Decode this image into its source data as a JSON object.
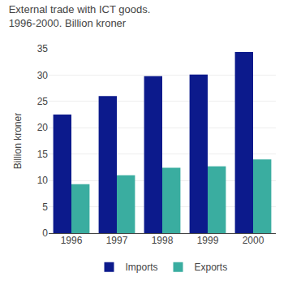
{
  "chart_data": {
    "type": "bar",
    "title": "External trade with ICT goods. 1996-2000. Billion kroner",
    "ylabel": "Billion kroner",
    "categories": [
      "1996",
      "1997",
      "1998",
      "1999",
      "2000"
    ],
    "series": [
      {
        "name": "Imports",
        "color": "#0c1a8c",
        "values": [
          22.5,
          26.0,
          29.8,
          30.1,
          34.4
        ]
      },
      {
        "name": "Exports",
        "color": "#3aada0",
        "values": [
          9.3,
          11.0,
          12.4,
          12.7,
          14.0
        ]
      }
    ],
    "ylim": [
      0,
      35
    ],
    "yticks": [
      0,
      5,
      10,
      15,
      20,
      25,
      30,
      35
    ],
    "grid": true,
    "legend": "bottom"
  }
}
